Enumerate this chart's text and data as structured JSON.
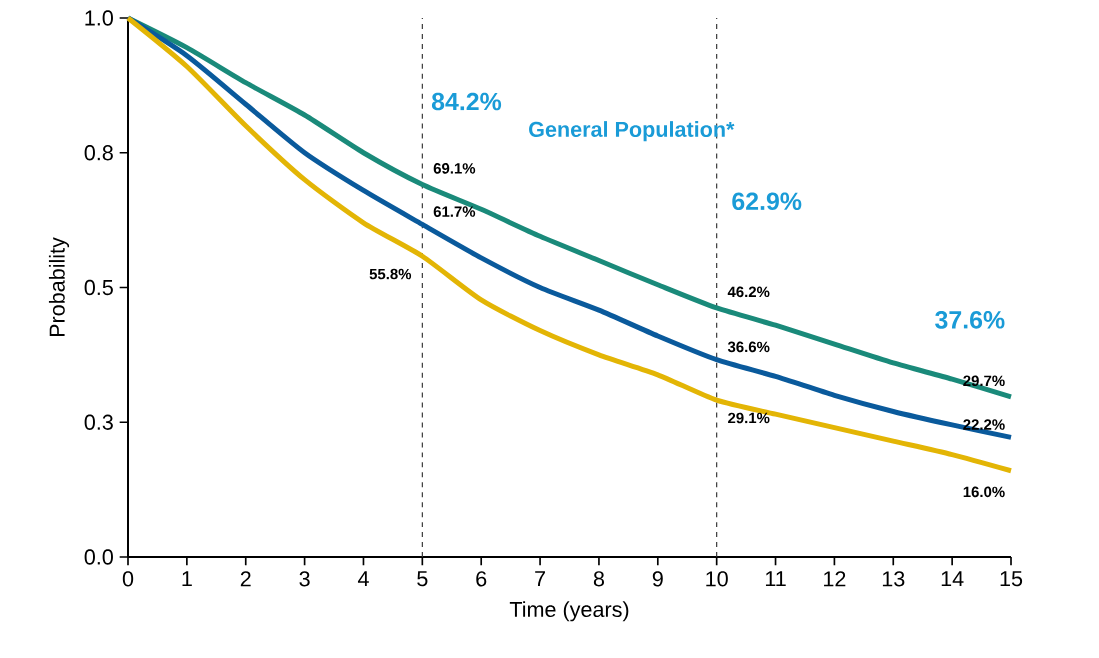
{
  "chart_data": {
    "type": "line",
    "xlabel": "Time (years)",
    "ylabel": "Probability",
    "x": [
      0,
      1,
      2,
      3,
      4,
      5,
      6,
      7,
      8,
      9,
      10,
      11,
      12,
      13,
      14,
      15
    ],
    "xlim": [
      0,
      15
    ],
    "xticks": [
      0,
      1,
      2,
      3,
      4,
      5,
      6,
      7,
      8,
      9,
      10,
      11,
      12,
      13,
      14,
      15
    ],
    "ylim": [
      0,
      1
    ],
    "yticks": [
      {
        "value": 0,
        "label": "0.0"
      },
      {
        "value": 0.25,
        "label": "0.3"
      },
      {
        "value": 0.5,
        "label": "0.5"
      },
      {
        "value": 0.75,
        "label": "0.8"
      },
      {
        "value": 1,
        "label": "1.0"
      }
    ],
    "series": [
      {
        "color": "#1a8a7a",
        "values": [
          1.0,
          0.945,
          0.88,
          0.82,
          0.75,
          0.691,
          0.645,
          0.595,
          0.55,
          0.505,
          0.462,
          0.43,
          0.395,
          0.36,
          0.33,
          0.297
        ],
        "value_labels": [
          null,
          null,
          null,
          null,
          null,
          "69.1%",
          null,
          null,
          null,
          null,
          "46.2%",
          null,
          null,
          null,
          null,
          "29.7%"
        ]
      },
      {
        "color": "#0a5a9c",
        "values": [
          1.0,
          0.93,
          0.84,
          0.75,
          0.68,
          0.617,
          0.555,
          0.5,
          0.458,
          0.41,
          0.366,
          0.335,
          0.3,
          0.27,
          0.245,
          0.222
        ],
        "value_labels": [
          null,
          null,
          null,
          null,
          null,
          "61.7%",
          null,
          null,
          null,
          null,
          "36.6%",
          null,
          null,
          null,
          null,
          "22.2%"
        ]
      },
      {
        "color": "#e3b505",
        "values": [
          1.0,
          0.91,
          0.8,
          0.7,
          0.62,
          0.558,
          0.477,
          0.42,
          0.375,
          0.338,
          0.291,
          0.265,
          0.24,
          0.215,
          0.19,
          0.16
        ],
        "value_labels": [
          null,
          null,
          null,
          null,
          null,
          "55.8%",
          null,
          null,
          null,
          null,
          "29.1%",
          null,
          null,
          null,
          null,
          "16.0%"
        ]
      }
    ],
    "ref_lines": [
      {
        "axis": "x",
        "value": 5,
        "color": "#333333",
        "line_style": "dashed"
      },
      {
        "axis": "x",
        "value": 10,
        "color": "#333333",
        "line_style": "dashed"
      }
    ],
    "annotations": [
      "84.2%",
      "General Population*",
      "62.9%",
      "37.6%"
    ],
    "marker": "none",
    "line_style": "solid",
    "grid": false
  }
}
